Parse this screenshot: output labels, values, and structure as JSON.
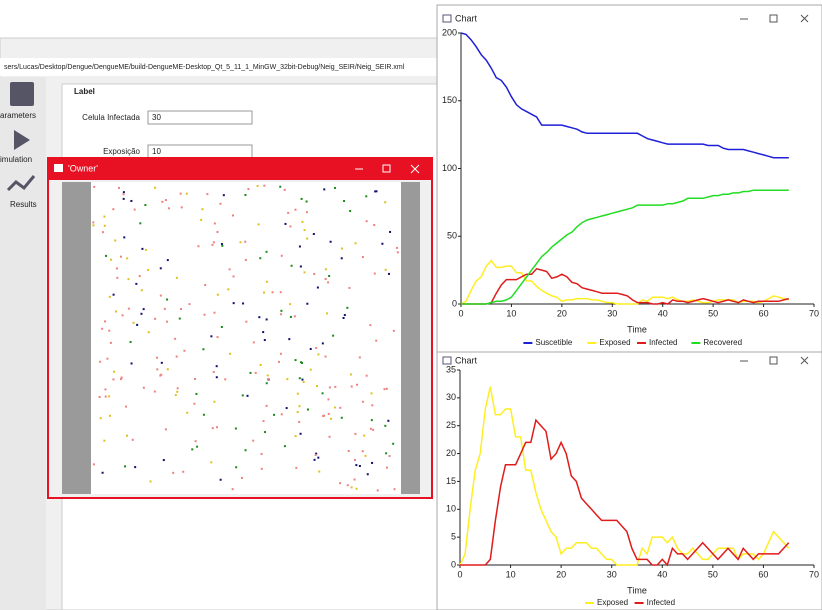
{
  "app": {
    "path": "sers/Lucas/Desktop/Dengue/DengueME/build-DengueME-Desktop_Qt_5_11_1_MinGW_32bit-Debug/Neig_SEIR/Neig_SEIR.xml",
    "sidebar": [
      "arameters",
      "imulation",
      "Results"
    ],
    "panel_label": "Label",
    "fields": [
      {
        "label": "Celula Infectada",
        "value": "30"
      },
      {
        "label": "Exposição",
        "value": "10"
      }
    ]
  },
  "owner_window": {
    "title": "'Owner'"
  },
  "chart_data": [
    {
      "type": "line",
      "title": "Chart",
      "x_label": "Time",
      "x": [
        0,
        1,
        2,
        3,
        4,
        5,
        6,
        7,
        8,
        9,
        10,
        11,
        12,
        13,
        14,
        15,
        16,
        17,
        18,
        19,
        20,
        21,
        22,
        23,
        24,
        25,
        26,
        27,
        28,
        29,
        30,
        31,
        32,
        33,
        34,
        35,
        36,
        37,
        38,
        39,
        40,
        41,
        42,
        43,
        44,
        45,
        46,
        47,
        48,
        49,
        50,
        51,
        52,
        53,
        54,
        55,
        56,
        57,
        58,
        59,
        60,
        61,
        62,
        63,
        64,
        65
      ],
      "xlim": [
        0,
        70
      ],
      "xticks": [
        0,
        10,
        20,
        30,
        40,
        50,
        60,
        70
      ],
      "ylim": [
        0,
        200
      ],
      "yticks": [
        0,
        50,
        100,
        150,
        200
      ],
      "series": [
        {
          "name": "Suscetible",
          "color": "#1f1fd8",
          "values": [
            200,
            199,
            195,
            190,
            184,
            180,
            174,
            167,
            165,
            160,
            153,
            147,
            144,
            142,
            140,
            138,
            132,
            132,
            132,
            132,
            132,
            131,
            130,
            129,
            127,
            126,
            126,
            126,
            126,
            126,
            126,
            126,
            126,
            126,
            126,
            126,
            124,
            122,
            121,
            120,
            119,
            118,
            118,
            118,
            118,
            118,
            118,
            118,
            118,
            117,
            117,
            117,
            115,
            114,
            114,
            114,
            114,
            113,
            112,
            111,
            110,
            109,
            108,
            108,
            108,
            108
          ]
        },
        {
          "name": "Exposed",
          "color": "#ffee22",
          "values": [
            0,
            2,
            10,
            17,
            20,
            28,
            32,
            27,
            27,
            28,
            28,
            23,
            23,
            17,
            17,
            13,
            10,
            8,
            6,
            5,
            2,
            3,
            3,
            4,
            4,
            4,
            3,
            3,
            2,
            1,
            1,
            0,
            0,
            0,
            0,
            0,
            3,
            2,
            5,
            5,
            5,
            4,
            5,
            3,
            2,
            2,
            3,
            2,
            1,
            1,
            2,
            3,
            3,
            3,
            3,
            1,
            2,
            2,
            2,
            1,
            2,
            4,
            6,
            5,
            4,
            3
          ]
        },
        {
          "name": "Infected",
          "color": "#e01b1b",
          "values": [
            0,
            0,
            0,
            0,
            0,
            0,
            1,
            8,
            14,
            18,
            18,
            18,
            20,
            22,
            22,
            26,
            25,
            24,
            19,
            20,
            22,
            20,
            16,
            15,
            12,
            11,
            10,
            9,
            8,
            8,
            8,
            8,
            7,
            6,
            3,
            1,
            1,
            1,
            0,
            0,
            1,
            0,
            3,
            2,
            2,
            1,
            2,
            3,
            4,
            3,
            2,
            1,
            2,
            3,
            2,
            1,
            3,
            2,
            1,
            2,
            2,
            2,
            2,
            2,
            3,
            4
          ]
        },
        {
          "name": "Recovered",
          "color": "#22dd22",
          "values": [
            0,
            0,
            0,
            0,
            0,
            0,
            1,
            2,
            2,
            3,
            5,
            10,
            15,
            20,
            25,
            30,
            35,
            38,
            42,
            45,
            48,
            51,
            53,
            57,
            60,
            62,
            63,
            64,
            65,
            66,
            67,
            68,
            69,
            70,
            71,
            73,
            73,
            73,
            73,
            73,
            73,
            74,
            74,
            75,
            76,
            78,
            78,
            78,
            78,
            79,
            80,
            80,
            81,
            81,
            82,
            82,
            83,
            83,
            84,
            84,
            84,
            84,
            84,
            84,
            84,
            84
          ]
        }
      ]
    },
    {
      "type": "line",
      "title": "Chart",
      "x_label": "Time",
      "x": [
        0,
        1,
        2,
        3,
        4,
        5,
        6,
        7,
        8,
        9,
        10,
        11,
        12,
        13,
        14,
        15,
        16,
        17,
        18,
        19,
        20,
        21,
        22,
        23,
        24,
        25,
        26,
        27,
        28,
        29,
        30,
        31,
        32,
        33,
        34,
        35,
        36,
        37,
        38,
        39,
        40,
        41,
        42,
        43,
        44,
        45,
        46,
        47,
        48,
        49,
        50,
        51,
        52,
        53,
        54,
        55,
        56,
        57,
        58,
        59,
        60,
        61,
        62,
        63,
        64,
        65
      ],
      "xlim": [
        0,
        70
      ],
      "xticks": [
        0,
        10,
        20,
        30,
        40,
        50,
        60,
        70
      ],
      "ylim": [
        0,
        35
      ],
      "yticks": [
        0,
        5,
        10,
        15,
        20,
        25,
        30,
        35
      ],
      "series": [
        {
          "name": "Exposed",
          "color": "#ffee22",
          "values": [
            0,
            2,
            10,
            17,
            20,
            28,
            32,
            27,
            27,
            28,
            28,
            23,
            23,
            17,
            17,
            13,
            10,
            8,
            6,
            5,
            2,
            3,
            3,
            4,
            4,
            4,
            3,
            3,
            2,
            1,
            1,
            0,
            0,
            0,
            0,
            0,
            3,
            2,
            5,
            5,
            5,
            4,
            5,
            3,
            2,
            2,
            3,
            2,
            1,
            1,
            2,
            3,
            3,
            3,
            3,
            1,
            2,
            2,
            2,
            1,
            2,
            4,
            6,
            5,
            4,
            3
          ]
        },
        {
          "name": "Infected",
          "color": "#e01b1b",
          "values": [
            0,
            0,
            0,
            0,
            0,
            0,
            1,
            8,
            14,
            18,
            18,
            18,
            20,
            22,
            22,
            26,
            25,
            24,
            19,
            20,
            22,
            20,
            16,
            15,
            12,
            11,
            10,
            9,
            8,
            8,
            8,
            8,
            7,
            6,
            3,
            1,
            1,
            1,
            0,
            0,
            1,
            0,
            3,
            2,
            2,
            1,
            2,
            3,
            4,
            3,
            2,
            1,
            2,
            3,
            2,
            1,
            3,
            2,
            1,
            2,
            2,
            2,
            2,
            2,
            3,
            4
          ]
        }
      ]
    }
  ]
}
